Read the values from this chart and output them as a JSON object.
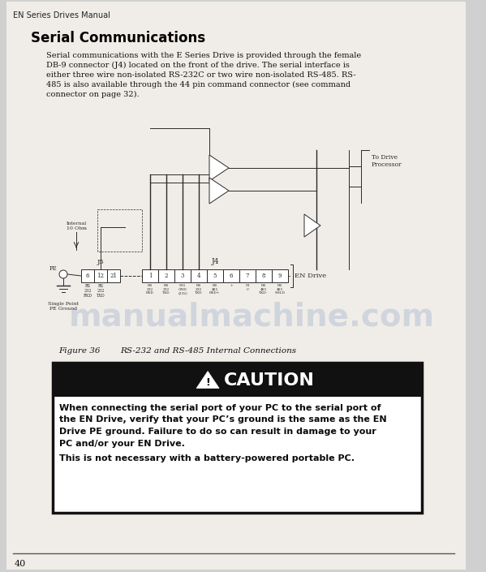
{
  "header_text": "EN Series Drives Manual",
  "title": "Serial Communications",
  "body_lines": [
    "Serial communications with the E Series Drive is provided through the female",
    "DB-9 connector (J4) located on the front of the drive. The serial interface is",
    "either three wire non-isolated RS-232C or two wire non-isolated RS-485. RS-",
    "485 is also available through the 44 pin command connector (see command",
    "connector on page 32)."
  ],
  "figure_label": "Figure 36",
  "figure_caption": "RS-232 and RS-485 Internal Connections",
  "caution_title": "CAUTION",
  "caution_bold_lines": [
    "When connecting the serial port of your PC to the serial port of",
    "the EN Drive, verify that your PC’s ground is the same as the EN",
    "Drive PE ground. Failure to do so can result in damage to your",
    "PC and/or your EN Drive."
  ],
  "caution_normal_line": "This is not necessary with a battery-powered portable PC.",
  "page_number": "40",
  "watermark_text": "manualmachine.com",
  "page_bg": "#d0d0d0",
  "content_bg": "#f0ede8",
  "diag_color": "#2a2a2a",
  "caution_header_bg": "#111111",
  "caution_box_border": "#111111"
}
